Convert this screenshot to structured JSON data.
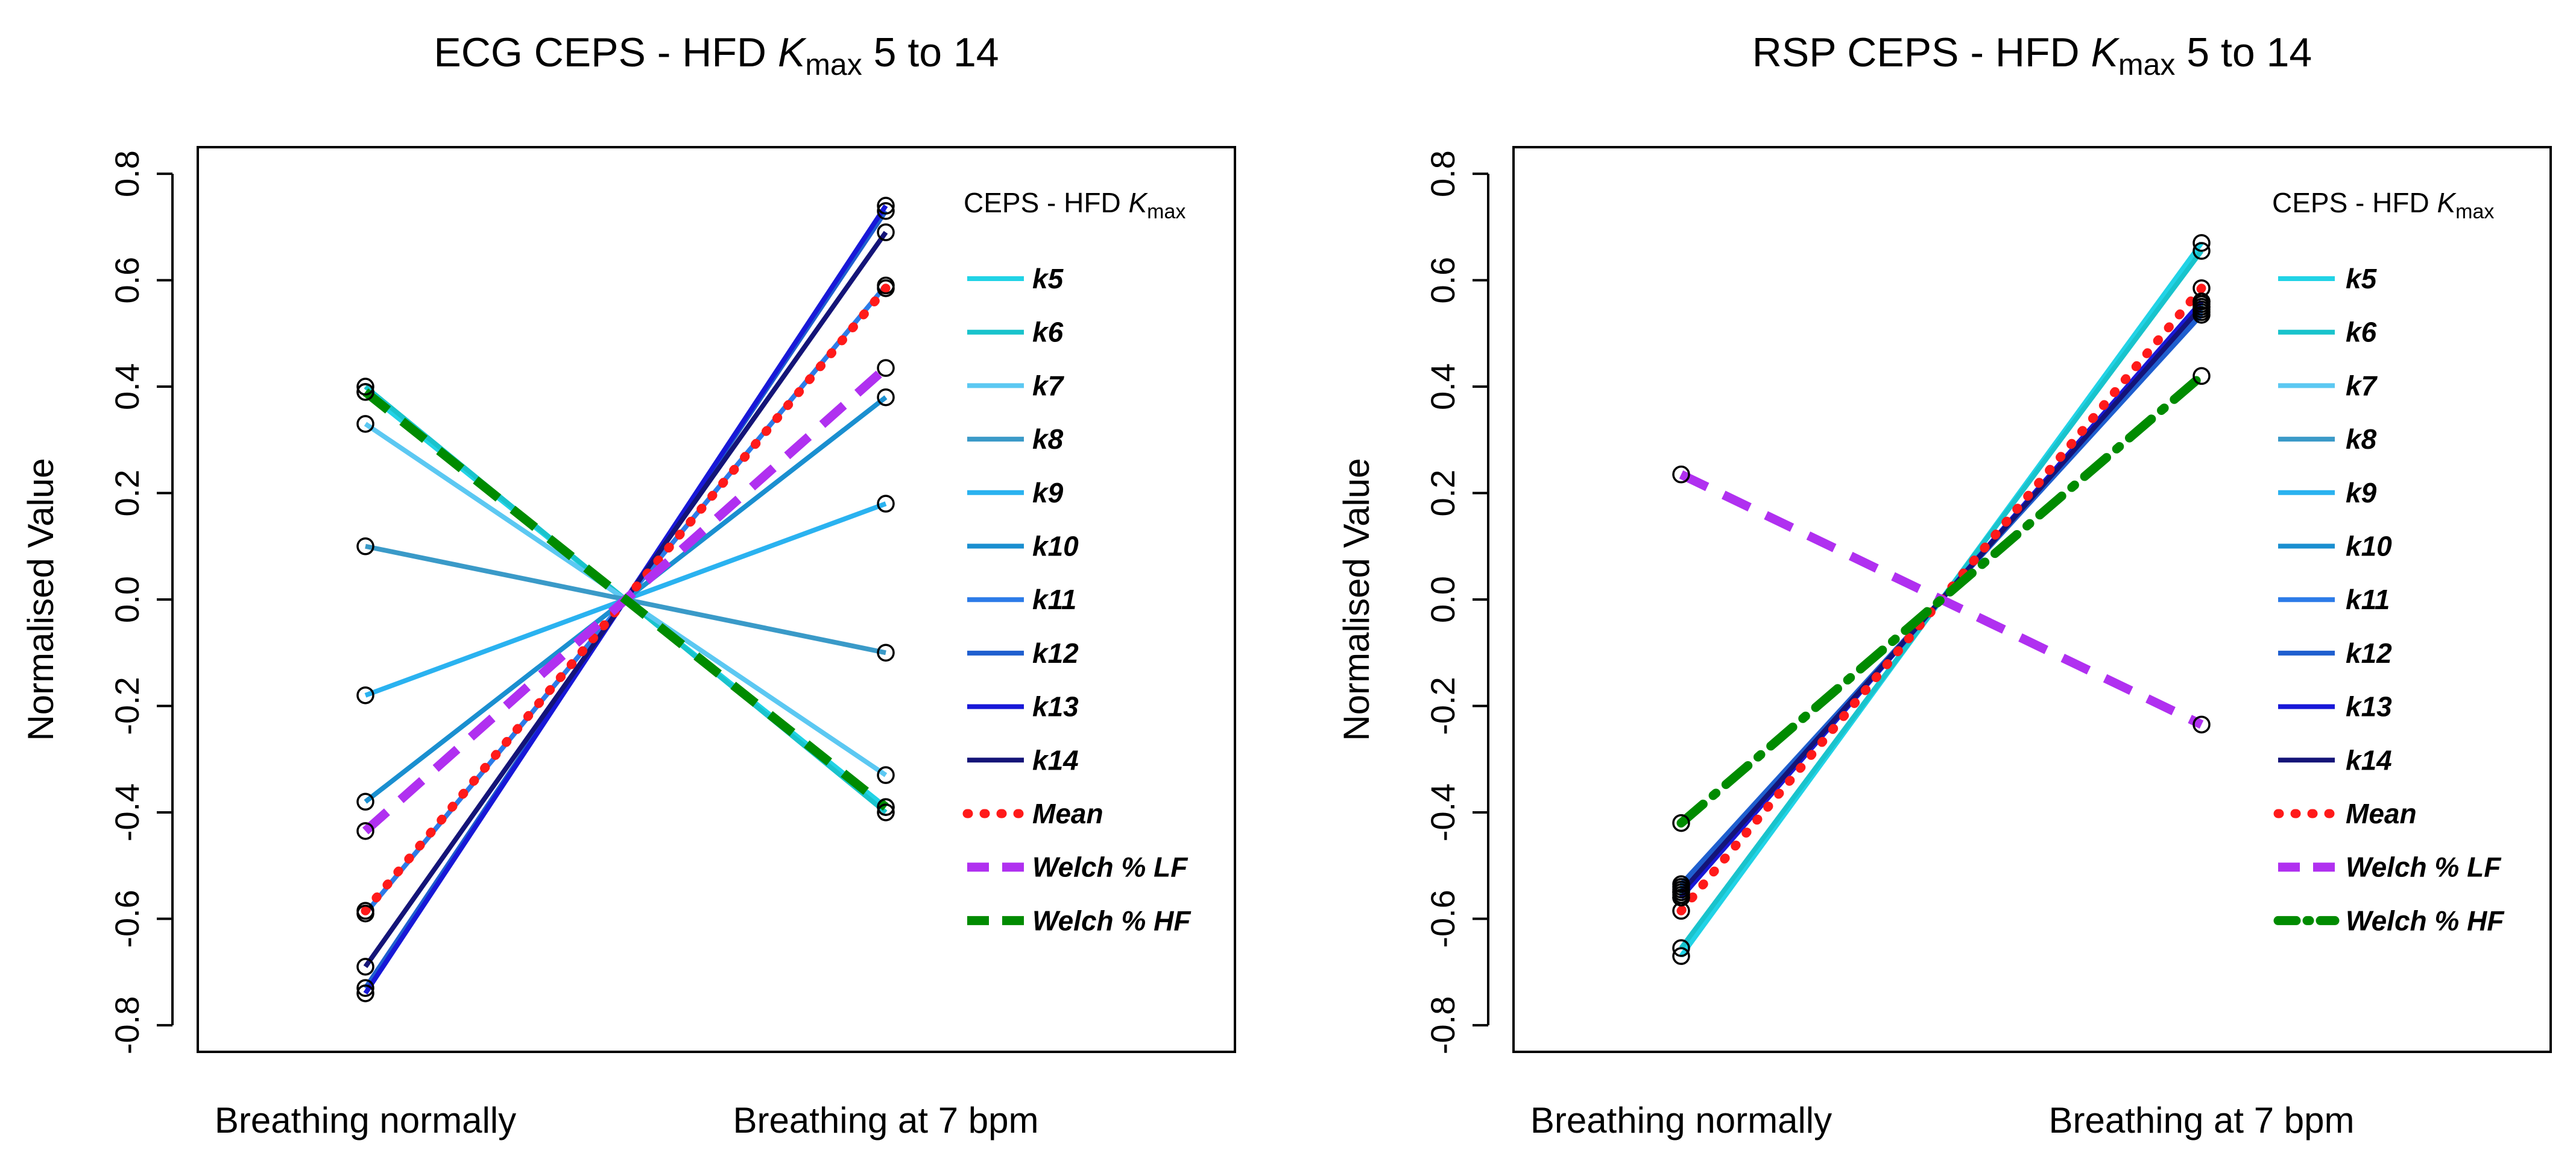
{
  "figure": {
    "layout": "two panels side by side"
  },
  "chart_data": [
    {
      "type": "line",
      "title_main": "ECG CEPS - HFD ",
      "title_k": "K",
      "title_sub": "max",
      "title_rest": " 5 to 14",
      "ylabel": "Normalised Value",
      "xlabel": "",
      "categories": [
        "Breathing normally",
        "Breathing at 7 bpm"
      ],
      "ylim": [
        -0.85,
        0.85
      ],
      "yticks": [
        "-0.8",
        "-0.6",
        "-0.4",
        "-0.2",
        "0.0",
        "0.2",
        "0.4",
        "0.6",
        "0.8"
      ],
      "ytick_values": [
        -0.8,
        -0.6,
        -0.4,
        -0.2,
        0.0,
        0.2,
        0.4,
        0.6,
        0.8
      ],
      "legend": {
        "title_main": "CEPS - HFD ",
        "title_k": "K",
        "title_sub": "max",
        "position": "right"
      },
      "series": [
        {
          "name": "k5",
          "color": "#21D3E6",
          "style": "solid",
          "values": [
            0.39,
            -0.39
          ]
        },
        {
          "name": "k6",
          "color": "#19C3CC",
          "style": "solid",
          "values": [
            0.4,
            -0.4
          ]
        },
        {
          "name": "k7",
          "color": "#5CC8F2",
          "style": "solid",
          "values": [
            0.33,
            -0.33
          ]
        },
        {
          "name": "k8",
          "color": "#3A9AC8",
          "style": "solid",
          "values": [
            0.1,
            -0.1
          ]
        },
        {
          "name": "k9",
          "color": "#2AB2F0",
          "style": "solid",
          "values": [
            -0.18,
            0.18
          ]
        },
        {
          "name": "k10",
          "color": "#1A8FD0",
          "style": "solid",
          "values": [
            -0.38,
            0.38
          ]
        },
        {
          "name": "k11",
          "color": "#2C7BE8",
          "style": "solid",
          "values": [
            -0.59,
            0.59
          ]
        },
        {
          "name": "k12",
          "color": "#1F5FCF",
          "style": "solid",
          "values": [
            -0.73,
            0.73
          ]
        },
        {
          "name": "k13",
          "color": "#1818D8",
          "style": "solid",
          "values": [
            -0.74,
            0.74
          ]
        },
        {
          "name": "k14",
          "color": "#141478",
          "style": "solid",
          "values": [
            -0.69,
            0.69
          ]
        },
        {
          "name": "Mean",
          "color": "#FF1A1A",
          "style": "dotted",
          "values": [
            -0.585,
            0.585
          ]
        },
        {
          "name": "Welch % LF",
          "color": "#B030F0",
          "style": "dashed",
          "values": [
            -0.435,
            0.435
          ]
        },
        {
          "name": "Welch % HF",
          "color": "#008B00",
          "style": "dashed",
          "values": [
            0.39,
            -0.39
          ]
        }
      ]
    },
    {
      "type": "line",
      "title_main": "RSP CEPS - HFD ",
      "title_k": "K",
      "title_sub": "max",
      "title_rest": " 5 to 14",
      "ylabel": "Normalised Value",
      "xlabel": "",
      "categories": [
        "Breathing normally",
        "Breathing at 7 bpm"
      ],
      "ylim": [
        -0.85,
        0.85
      ],
      "yticks": [
        "-0.8",
        "-0.6",
        "-0.4",
        "-0.2",
        "0.0",
        "0.2",
        "0.4",
        "0.6",
        "0.8"
      ],
      "ytick_values": [
        -0.8,
        -0.6,
        -0.4,
        -0.2,
        0.0,
        0.2,
        0.4,
        0.6,
        0.8
      ],
      "legend": {
        "title_main": "CEPS - HFD ",
        "title_k": "K",
        "title_sub": "max",
        "position": "right"
      },
      "series": [
        {
          "name": "k5",
          "color": "#21D3E6",
          "style": "solid",
          "values": [
            -0.67,
            0.67
          ]
        },
        {
          "name": "k6",
          "color": "#19C3CC",
          "style": "solid",
          "values": [
            -0.655,
            0.655
          ]
        },
        {
          "name": "k7",
          "color": "#5CC8F2",
          "style": "solid",
          "values": [
            -0.56,
            0.56
          ]
        },
        {
          "name": "k8",
          "color": "#3A9AC8",
          "style": "solid",
          "values": [
            -0.555,
            0.555
          ]
        },
        {
          "name": "k9",
          "color": "#2AB2F0",
          "style": "solid",
          "values": [
            -0.55,
            0.55
          ]
        },
        {
          "name": "k10",
          "color": "#1A8FD0",
          "style": "solid",
          "values": [
            -0.545,
            0.545
          ]
        },
        {
          "name": "k11",
          "color": "#2C7BE8",
          "style": "solid",
          "values": [
            -0.54,
            0.54
          ]
        },
        {
          "name": "k12",
          "color": "#1F5FCF",
          "style": "solid",
          "values": [
            -0.535,
            0.535
          ]
        },
        {
          "name": "k13",
          "color": "#1818D8",
          "style": "solid",
          "values": [
            -0.56,
            0.56
          ]
        },
        {
          "name": "k14",
          "color": "#141478",
          "style": "solid",
          "values": [
            -0.55,
            0.55
          ]
        },
        {
          "name": "Mean",
          "color": "#FF1A1A",
          "style": "dotted",
          "values": [
            -0.585,
            0.585
          ]
        },
        {
          "name": "Welch % LF",
          "color": "#B030F0",
          "style": "dashed",
          "values": [
            0.235,
            -0.235
          ]
        },
        {
          "name": "Welch % HF",
          "color": "#008B00",
          "style": "dashdot",
          "values": [
            -0.42,
            0.42
          ]
        }
      ]
    }
  ]
}
